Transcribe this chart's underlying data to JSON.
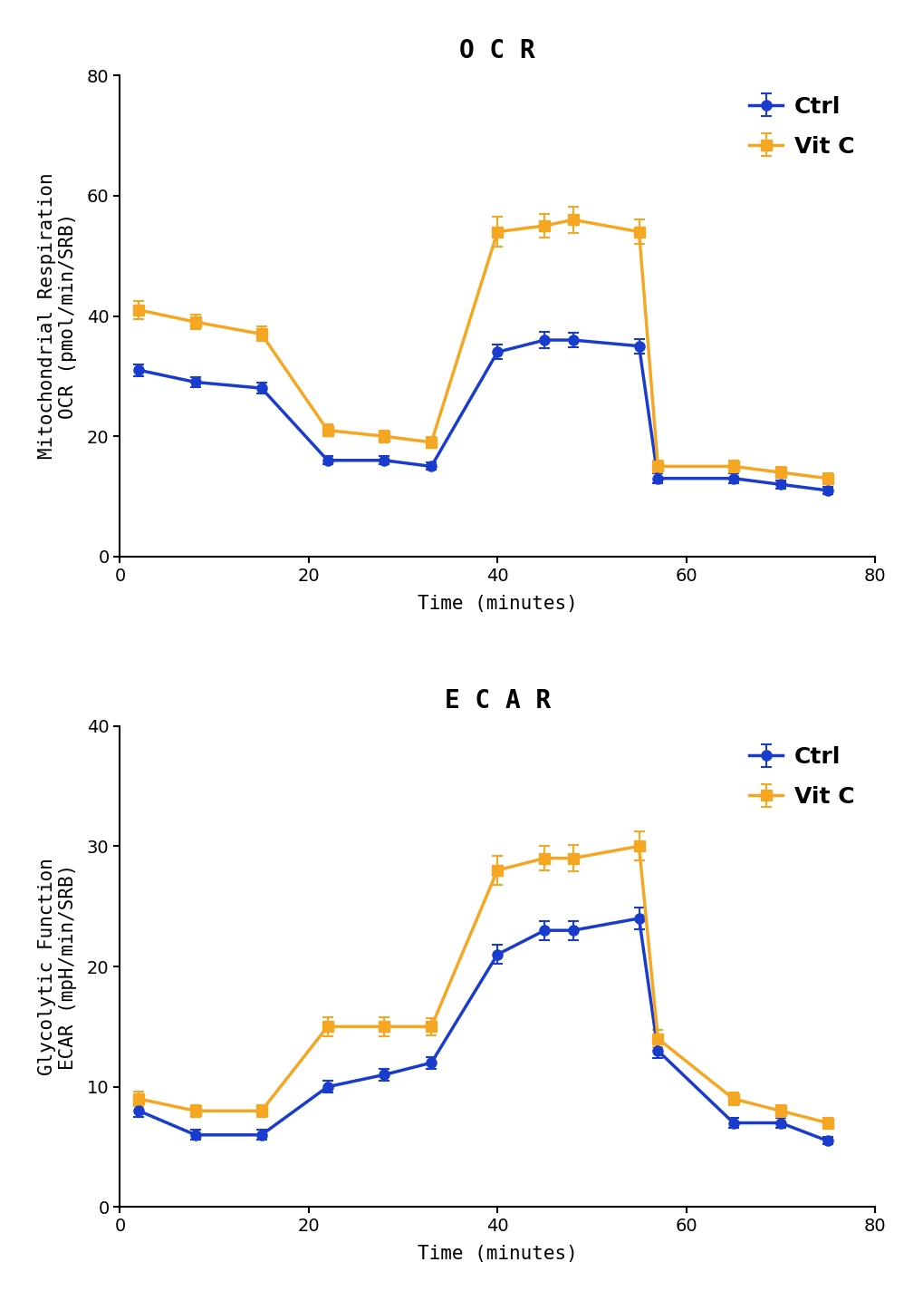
{
  "ocr": {
    "title": "O C R",
    "ylabel": "Mitochondrial Respiration\nOCR (pmol/min/SRB)",
    "xlabel": "Time (minutes)",
    "ylim": [
      0,
      80
    ],
    "yticks": [
      0,
      20,
      40,
      60,
      80
    ],
    "xlim": [
      0,
      80
    ],
    "xticks": [
      0,
      20,
      40,
      60,
      80
    ],
    "ctrl": {
      "x": [
        2,
        8,
        15,
        22,
        28,
        33,
        40,
        45,
        48,
        55,
        57,
        65,
        70,
        75
      ],
      "y": [
        31,
        29,
        28,
        16,
        16,
        15,
        34,
        36,
        36,
        35,
        13,
        13,
        12,
        11
      ],
      "yerr": [
        1.0,
        0.8,
        0.9,
        0.7,
        0.7,
        0.6,
        1.2,
        1.3,
        1.2,
        1.2,
        0.8,
        0.8,
        0.7,
        0.6
      ]
    },
    "vitc": {
      "x": [
        2,
        8,
        15,
        22,
        28,
        33,
        40,
        45,
        48,
        55,
        57,
        65,
        70,
        75
      ],
      "y": [
        41,
        39,
        37,
        21,
        20,
        19,
        54,
        55,
        56,
        54,
        15,
        15,
        14,
        13
      ],
      "yerr": [
        1.5,
        1.2,
        1.2,
        1.0,
        1.0,
        0.9,
        2.5,
        2.0,
        2.2,
        2.0,
        1.0,
        1.0,
        0.9,
        0.8
      ]
    }
  },
  "ecar": {
    "title": "E C A R",
    "ylabel": "Glycolytic Function\nECAR (mpH/min/SRB)",
    "xlabel": "Time (minutes)",
    "ylim": [
      0,
      40
    ],
    "yticks": [
      0,
      10,
      20,
      30,
      40
    ],
    "xlim": [
      0,
      80
    ],
    "xticks": [
      0,
      20,
      40,
      60,
      80
    ],
    "ctrl": {
      "x": [
        2,
        8,
        15,
        22,
        28,
        33,
        40,
        45,
        48,
        55,
        57,
        65,
        70,
        75
      ],
      "y": [
        8,
        6,
        6,
        10,
        11,
        12,
        21,
        23,
        23,
        24,
        13,
        7,
        7,
        5.5
      ],
      "yerr": [
        0.5,
        0.4,
        0.4,
        0.5,
        0.5,
        0.5,
        0.8,
        0.8,
        0.8,
        0.9,
        0.6,
        0.4,
        0.4,
        0.3
      ]
    },
    "vitc": {
      "x": [
        2,
        8,
        15,
        22,
        28,
        33,
        40,
        45,
        48,
        55,
        57,
        65,
        70,
        75
      ],
      "y": [
        9,
        8,
        8,
        15,
        15,
        15,
        28,
        29,
        29,
        30,
        14,
        9,
        8,
        7
      ],
      "yerr": [
        0.6,
        0.5,
        0.5,
        0.8,
        0.8,
        0.7,
        1.2,
        1.0,
        1.1,
        1.2,
        0.7,
        0.5,
        0.5,
        0.4
      ]
    }
  },
  "ctrl_color": "#1a3ccc",
  "vitc_color": "#f5a623",
  "background_color": "#ffffff",
  "legend_fontsize": 18,
  "title_fontsize": 20,
  "label_fontsize": 15,
  "tick_fontsize": 14,
  "linewidth": 2.5,
  "markersize": 8,
  "capsize": 4
}
